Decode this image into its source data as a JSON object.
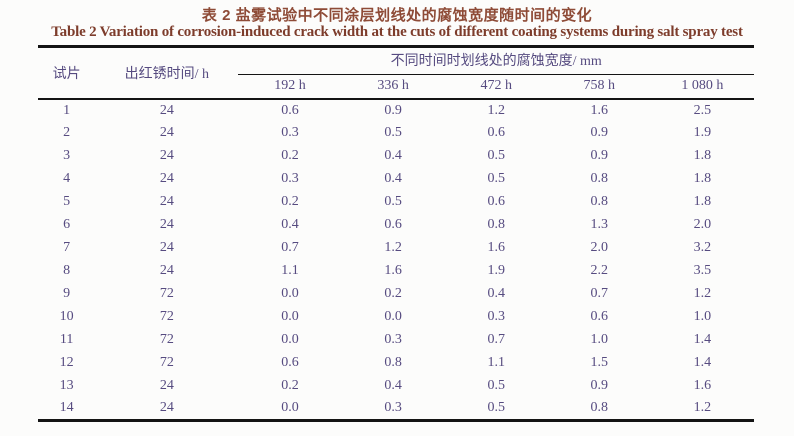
{
  "titles": {
    "zh": "表 2  盐雾试验中不同涂层划线处的腐蚀宽度随时间的变化",
    "en": "Table 2   Variation of corrosion-induced crack width at the cuts of different coating systems during salt spray test"
  },
  "table": {
    "specimen_header": "试片",
    "rust_time_header": "出红锈时间/ h",
    "group_header": "不同时间时划线处的腐蚀宽度/ mm",
    "time_headers": [
      "192 h",
      "336 h",
      "472 h",
      "758 h",
      "1 080 h"
    ],
    "rows": [
      {
        "specimen": "1",
        "rust_time": "24",
        "values": [
          "0.6",
          "0.9",
          "1.2",
          "1.6",
          "2.5"
        ]
      },
      {
        "specimen": "2",
        "rust_time": "24",
        "values": [
          "0.3",
          "0.5",
          "0.6",
          "0.9",
          "1.9"
        ]
      },
      {
        "specimen": "3",
        "rust_time": "24",
        "values": [
          "0.2",
          "0.4",
          "0.5",
          "0.9",
          "1.8"
        ]
      },
      {
        "specimen": "4",
        "rust_time": "24",
        "values": [
          "0.3",
          "0.4",
          "0.5",
          "0.8",
          "1.8"
        ]
      },
      {
        "specimen": "5",
        "rust_time": "24",
        "values": [
          "0.2",
          "0.5",
          "0.6",
          "0.8",
          "1.8"
        ]
      },
      {
        "specimen": "6",
        "rust_time": "24",
        "values": [
          "0.4",
          "0.6",
          "0.8",
          "1.3",
          "2.0"
        ]
      },
      {
        "specimen": "7",
        "rust_time": "24",
        "values": [
          "0.7",
          "1.2",
          "1.6",
          "2.0",
          "3.2"
        ]
      },
      {
        "specimen": "8",
        "rust_time": "24",
        "values": [
          "1.1",
          "1.6",
          "1.9",
          "2.2",
          "3.5"
        ]
      },
      {
        "specimen": "9",
        "rust_time": "72",
        "values": [
          "0.0",
          "0.2",
          "0.4",
          "0.7",
          "1.2"
        ]
      },
      {
        "specimen": "10",
        "rust_time": "72",
        "values": [
          "0.0",
          "0.0",
          "0.3",
          "0.6",
          "1.0"
        ]
      },
      {
        "specimen": "11",
        "rust_time": "72",
        "values": [
          "0.0",
          "0.3",
          "0.7",
          "1.0",
          "1.4"
        ]
      },
      {
        "specimen": "12",
        "rust_time": "72",
        "values": [
          "0.6",
          "0.8",
          "1.1",
          "1.5",
          "1.4"
        ]
      },
      {
        "specimen": "13",
        "rust_time": "24",
        "values": [
          "0.2",
          "0.4",
          "0.5",
          "0.9",
          "1.6"
        ]
      },
      {
        "specimen": "14",
        "rust_time": "24",
        "values": [
          "0.0",
          "0.3",
          "0.5",
          "0.8",
          "1.2"
        ]
      }
    ]
  },
  "colors": {
    "title_zh": "#8e4b37",
    "title_en": "#7d3c2b",
    "table_text": "#564b80",
    "rule": "#141414",
    "background": "#fcfcfb"
  }
}
